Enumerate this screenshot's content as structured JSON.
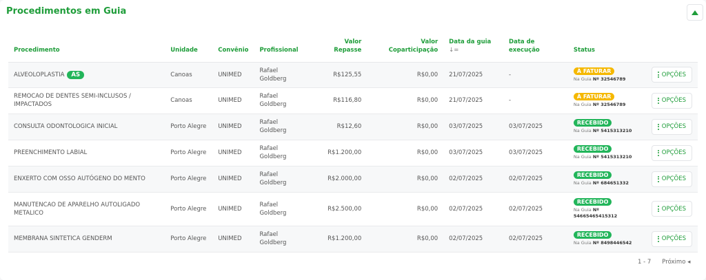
{
  "title": "Procedimentos em Guia",
  "colors": {
    "accent": "#1f9d3a",
    "a_faturar": "#f5b800",
    "recebido": "#22b55a"
  },
  "headers": {
    "procedimento": "Procedimento",
    "unidade": "Unidade",
    "convenio": "Convênio",
    "profissional": "Profissional",
    "valor_repasse_1": "Valor",
    "valor_repasse_2": "Repasse",
    "valor_copart_1": "Valor",
    "valor_copart_2": "Coparticipação",
    "data_guia": "Data da guia",
    "sort_icon": "↓=",
    "data_exec_1": "Data de",
    "data_exec_2": "execução",
    "status": "Status"
  },
  "rows": [
    {
      "procedimento": "ALVEOLOPLASTIA",
      "tag": "AS",
      "unidade": "Canoas",
      "convenio": "UNIMED",
      "profissional": "Rafael Goldberg",
      "repasse": "R$125,55",
      "copart": "R$0,00",
      "data_guia": "21/07/2025",
      "data_exec": "-",
      "status": "À FATURAR",
      "status_type": "fat",
      "guia_label": "Na Guia",
      "guia_num": "Nº 32546789",
      "opcoes": "OPÇÕES"
    },
    {
      "procedimento": "REMOCAO DE DENTES SEMI-INCLUSOS / IMPACTADOS",
      "unidade": "Canoas",
      "convenio": "UNIMED",
      "profissional": "Rafael Goldberg",
      "repasse": "R$116,80",
      "copart": "R$0,00",
      "data_guia": "21/07/2025",
      "data_exec": "-",
      "status": "À FATURAR",
      "status_type": "fat",
      "guia_label": "Na Guia",
      "guia_num": "Nº 32546789",
      "opcoes": "OPÇÕES"
    },
    {
      "procedimento": "CONSULTA ODONTOLOGICA INICIAL",
      "unidade": "Porto Alegre",
      "convenio": "UNIMED",
      "profissional": "Rafael Goldberg",
      "repasse": "R$12,60",
      "copart": "R$0,00",
      "data_guia": "03/07/2025",
      "data_exec": "03/07/2025",
      "status": "RECEBIDO",
      "status_type": "rec",
      "guia_label": "Na Guia",
      "guia_num": "Nº 5415313210",
      "opcoes": "OPÇÕES"
    },
    {
      "procedimento": "PREENCHIMENTO LABIAL",
      "unidade": "Porto Alegre",
      "convenio": "UNIMED",
      "profissional": "Rafael Goldberg",
      "repasse": "R$1.200,00",
      "copart": "R$0,00",
      "data_guia": "03/07/2025",
      "data_exec": "03/07/2025",
      "status": "RECEBIDO",
      "status_type": "rec",
      "guia_label": "Na Guia",
      "guia_num": "Nº 5415313210",
      "opcoes": "OPÇÕES"
    },
    {
      "procedimento": "ENXERTO COM OSSO AUTÓGENO DO MENTO",
      "unidade": "Porto Alegre",
      "convenio": "UNIMED",
      "profissional": "Rafael Goldberg",
      "repasse": "R$2.000,00",
      "copart": "R$0,00",
      "data_guia": "02/07/2025",
      "data_exec": "02/07/2025",
      "status": "RECEBIDO",
      "status_type": "rec",
      "guia_label": "Na Guia",
      "guia_num": "Nº 684651332",
      "opcoes": "OPÇÕES"
    },
    {
      "procedimento": "MANUTENCAO DE APARELHO AUTOLIGADO METALICO",
      "unidade": "Porto Alegre",
      "convenio": "UNIMED",
      "profissional": "Rafael Goldberg",
      "repasse": "R$2.500,00",
      "copart": "R$0,00",
      "data_guia": "02/07/2025",
      "data_exec": "02/07/2025",
      "status": "RECEBIDO",
      "status_type": "rec",
      "guia_label": "Na Guia",
      "guia_num": "Nº 54665465415312",
      "opcoes": "OPÇÕES"
    },
    {
      "procedimento": "MEMBRANA SINTETICA GENDERM",
      "unidade": "Porto Alegre",
      "convenio": "UNIMED",
      "profissional": "Rafael Goldberg",
      "repasse": "R$1.200,00",
      "copart": "R$0,00",
      "data_guia": "02/07/2025",
      "data_exec": "02/07/2025",
      "status": "RECEBIDO",
      "status_type": "rec",
      "guia_label": "Na Guia",
      "guia_num": "Nº 8498446542",
      "opcoes": "OPÇÕES"
    }
  ],
  "pagination": {
    "range": "1 - 7",
    "next": "Próximo ◂"
  }
}
